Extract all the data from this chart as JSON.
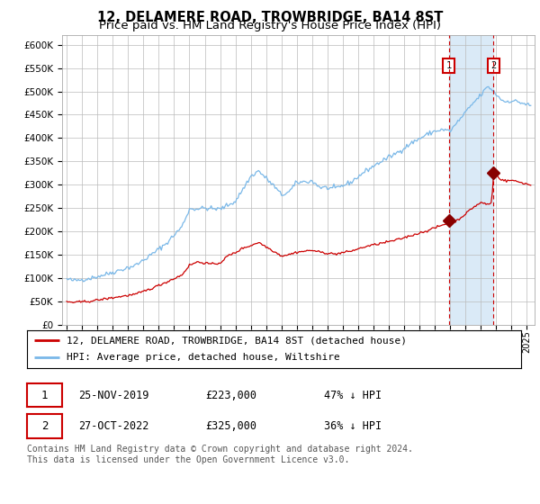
{
  "title1": "12, DELAMERE ROAD, TROWBRIDGE, BA14 8ST",
  "title2": "Price paid vs. HM Land Registry's House Price Index (HPI)",
  "ylim": [
    0,
    620000
  ],
  "yticks": [
    0,
    50000,
    100000,
    150000,
    200000,
    250000,
    300000,
    350000,
    400000,
    450000,
    500000,
    550000,
    600000
  ],
  "xlim_start": 1994.7,
  "xlim_end": 2025.5,
  "hpi_color": "#7ab8e8",
  "sale_color": "#cc0000",
  "bg_color": "#ffffff",
  "grid_color": "#bbbbbb",
  "shade_color": "#daeaf7",
  "marker_color": "#880000",
  "sale1_date": 2019.9,
  "sale1_price": 223000,
  "sale2_date": 2022.83,
  "sale2_price": 325000,
  "legend_line1": "12, DELAMERE ROAD, TROWBRIDGE, BA14 8ST (detached house)",
  "legend_line2": "HPI: Average price, detached house, Wiltshire",
  "footnote": "Contains HM Land Registry data © Crown copyright and database right 2024.\nThis data is licensed under the Open Government Licence v3.0."
}
